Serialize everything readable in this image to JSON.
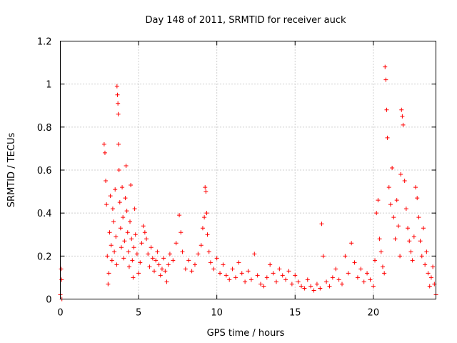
{
  "chart_data": {
    "type": "scatter",
    "title": "Day 148 of 2011, SRMTID for receiver auck",
    "xlabel": "GPS time / hours",
    "ylabel": "SRMTID / TECUs",
    "xlim": [
      0,
      24
    ],
    "ylim": [
      0,
      1.2
    ],
    "x_ticks": [
      0,
      5,
      10,
      15,
      20
    ],
    "x_tick_labels": [
      "0",
      "5",
      "10",
      "15",
      "20"
    ],
    "y_ticks": [
      0,
      0.2,
      0.4,
      0.6,
      0.8,
      1,
      1.2
    ],
    "y_tick_labels": [
      "0",
      "0.2",
      "0.4",
      "0.6",
      "0.8",
      "1",
      "1.2"
    ],
    "grid": true,
    "legend": "none",
    "marker": "plus",
    "color": "#ff0000",
    "series": [
      {
        "x": [
          0.0,
          0.05,
          0.08,
          0.1,
          2.8,
          2.85,
          2.9,
          2.95,
          3.0,
          3.05,
          3.1,
          3.15,
          3.2,
          3.25,
          3.3,
          3.35,
          3.4,
          3.45,
          3.5,
          3.55,
          3.6,
          3.62,
          3.65,
          3.68,
          3.7,
          3.72,
          3.75,
          3.8,
          3.85,
          3.9,
          3.95,
          4.0,
          4.05,
          4.1,
          4.15,
          4.2,
          4.25,
          4.3,
          4.35,
          4.4,
          4.45,
          4.5,
          4.55,
          4.6,
          4.65,
          4.7,
          4.75,
          4.8,
          4.9,
          5.0,
          5.1,
          5.2,
          5.3,
          5.4,
          5.5,
          5.6,
          5.7,
          5.8,
          5.9,
          6.0,
          6.1,
          6.2,
          6.3,
          6.4,
          6.5,
          6.6,
          6.7,
          6.8,
          6.9,
          7.0,
          7.2,
          7.4,
          7.6,
          7.7,
          7.8,
          8.0,
          8.2,
          8.4,
          8.6,
          8.8,
          9.0,
          9.1,
          9.2,
          9.25,
          9.3,
          9.35,
          9.4,
          9.5,
          9.6,
          9.8,
          10.0,
          10.2,
          10.4,
          10.6,
          10.8,
          11.0,
          11.2,
          11.4,
          11.6,
          11.8,
          12.0,
          12.2,
          12.4,
          12.6,
          12.8,
          13.0,
          13.2,
          13.4,
          13.6,
          13.8,
          14.0,
          14.2,
          14.4,
          14.6,
          14.8,
          15.0,
          15.2,
          15.4,
          15.6,
          15.8,
          16.0,
          16.2,
          16.4,
          16.6,
          16.7,
          16.8,
          17.0,
          17.2,
          17.4,
          17.6,
          17.8,
          18.0,
          18.2,
          18.4,
          18.6,
          18.8,
          19.0,
          19.2,
          19.4,
          19.6,
          19.8,
          20.0,
          20.1,
          20.2,
          20.3,
          20.4,
          20.5,
          20.6,
          20.7,
          20.75,
          20.8,
          20.85,
          20.9,
          21.0,
          21.1,
          21.2,
          21.3,
          21.4,
          21.5,
          21.6,
          21.7,
          21.75,
          21.8,
          21.85,
          21.9,
          22.0,
          22.1,
          22.2,
          22.3,
          22.4,
          22.5,
          22.6,
          22.7,
          22.8,
          22.9,
          23.0,
          23.1,
          23.2,
          23.3,
          23.4,
          23.5,
          23.6,
          23.7,
          23.8,
          23.9,
          24.0
        ],
        "y": [
          0.02,
          0.14,
          0.09,
          0.0,
          0.72,
          0.68,
          0.55,
          0.44,
          0.2,
          0.07,
          0.12,
          0.31,
          0.48,
          0.25,
          0.18,
          0.42,
          0.36,
          0.22,
          0.51,
          0.29,
          0.16,
          0.99,
          0.95,
          0.91,
          0.86,
          0.72,
          0.6,
          0.45,
          0.33,
          0.24,
          0.52,
          0.38,
          0.19,
          0.27,
          0.47,
          0.62,
          0.41,
          0.31,
          0.22,
          0.15,
          0.36,
          0.53,
          0.28,
          0.18,
          0.1,
          0.24,
          0.42,
          0.3,
          0.21,
          0.12,
          0.17,
          0.26,
          0.34,
          0.31,
          0.28,
          0.21,
          0.15,
          0.24,
          0.19,
          0.13,
          0.18,
          0.22,
          0.16,
          0.11,
          0.14,
          0.19,
          0.13,
          0.08,
          0.16,
          0.21,
          0.18,
          0.26,
          0.39,
          0.31,
          0.22,
          0.14,
          0.18,
          0.13,
          0.16,
          0.21,
          0.25,
          0.33,
          0.38,
          0.52,
          0.5,
          0.4,
          0.3,
          0.22,
          0.17,
          0.14,
          0.19,
          0.12,
          0.16,
          0.11,
          0.09,
          0.14,
          0.1,
          0.17,
          0.12,
          0.08,
          0.13,
          0.09,
          0.21,
          0.11,
          0.07,
          0.06,
          0.1,
          0.16,
          0.12,
          0.08,
          0.14,
          0.11,
          0.09,
          0.13,
          0.07,
          0.11,
          0.08,
          0.06,
          0.05,
          0.09,
          0.06,
          0.04,
          0.07,
          0.05,
          0.35,
          0.2,
          0.08,
          0.06,
          0.1,
          0.14,
          0.09,
          0.07,
          0.2,
          0.12,
          0.26,
          0.17,
          0.1,
          0.14,
          0.08,
          0.12,
          0.09,
          0.06,
          0.18,
          0.4,
          0.46,
          0.28,
          0.22,
          0.15,
          0.12,
          1.08,
          1.02,
          0.88,
          0.75,
          0.52,
          0.44,
          0.61,
          0.38,
          0.28,
          0.46,
          0.34,
          0.2,
          0.58,
          0.88,
          0.85,
          0.81,
          0.55,
          0.42,
          0.33,
          0.27,
          0.22,
          0.18,
          0.29,
          0.52,
          0.47,
          0.38,
          0.27,
          0.2,
          0.33,
          0.16,
          0.22,
          0.12,
          0.06,
          0.1,
          0.15,
          0.07,
          0.02
        ]
      }
    ]
  }
}
